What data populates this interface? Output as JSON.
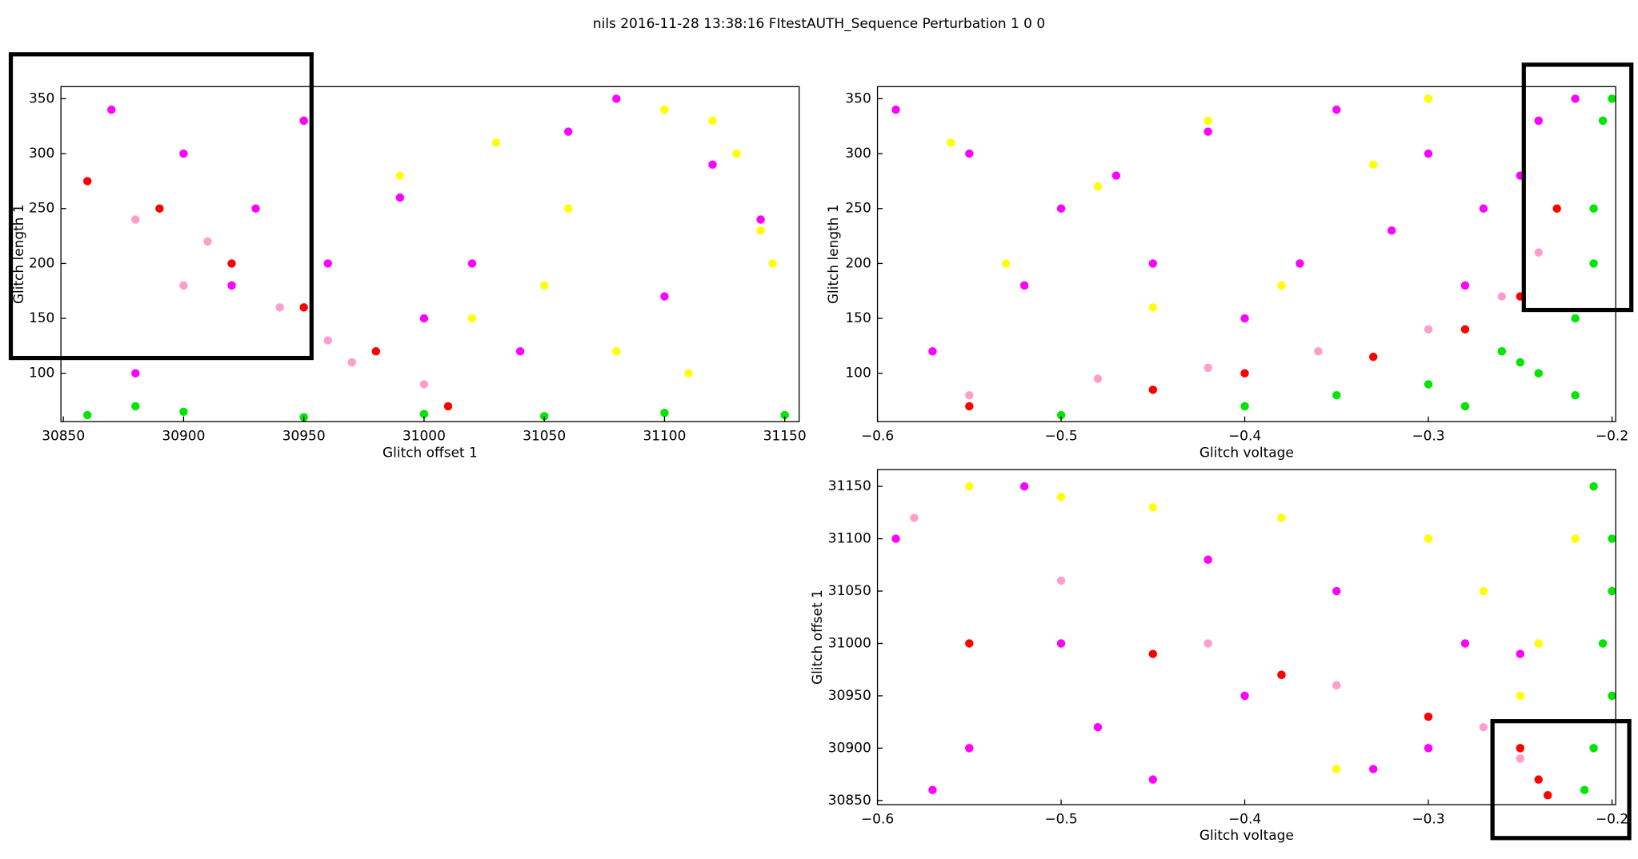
{
  "title": "nils 2016-11-28 13:38:16 FItestAUTH_Sequence Perturbation 1 0 0",
  "chart_data": [
    {
      "type": "scatter",
      "xlabel": "Glitch offset 1",
      "ylabel": "Glitch length 1",
      "xlim": [
        30849,
        31156
      ],
      "ylim": [
        56,
        361
      ],
      "xticks": [
        30850,
        30900,
        30950,
        31000,
        31050,
        31100,
        31150
      ],
      "yticks": [
        100,
        150,
        200,
        250,
        300,
        350
      ],
      "series": [
        {
          "color": "#00e600",
          "x": [
            30860,
            30900,
            30950,
            31000,
            31050,
            31100,
            31150,
            30880
          ],
          "values": [
            62,
            65,
            60,
            63,
            61,
            64,
            62,
            70
          ]
        },
        {
          "color": "#ffff00",
          "x": [
            31100,
            31130,
            31060,
            31145,
            31020,
            31080,
            31120,
            30990,
            31050,
            31140,
            31110,
            31030
          ],
          "values": [
            340,
            300,
            250,
            200,
            150,
            120,
            330,
            280,
            180,
            230,
            100,
            310
          ]
        },
        {
          "color": "#ff00ff",
          "x": [
            30870,
            30900,
            30930,
            30960,
            31000,
            31040,
            31080,
            31120,
            30880,
            30920,
            30950,
            30990,
            31020,
            31060,
            31100,
            31140
          ],
          "values": [
            340,
            300,
            250,
            200,
            150,
            120,
            350,
            290,
            100,
            180,
            330,
            260,
            200,
            320,
            170,
            240
          ]
        },
        {
          "color": "#ff9ecb",
          "x": [
            30880,
            30910,
            30940,
            30970,
            31000,
            30900,
            30960
          ],
          "values": [
            240,
            220,
            160,
            110,
            90,
            180,
            130
          ]
        },
        {
          "color": "#ff0000",
          "x": [
            30860,
            30890,
            30920,
            30950,
            30980,
            31010
          ],
          "values": [
            275,
            250,
            200,
            160,
            120,
            70
          ]
        }
      ]
    },
    {
      "type": "scatter",
      "xlabel": "Glitch voltage",
      "ylabel": "Glitch length 1",
      "xlim": [
        -0.6,
        -0.198
      ],
      "ylim": [
        56,
        361
      ],
      "xticks": [
        {
          "value": -0.6,
          "label": "−0.6"
        },
        {
          "value": -0.5,
          "label": "−0.5"
        },
        {
          "value": -0.4,
          "label": "−0.4"
        },
        {
          "value": -0.3,
          "label": "−0.3"
        },
        {
          "value": -0.2,
          "label": "−0.2"
        }
      ],
      "yticks": [
        100,
        150,
        200,
        250,
        300,
        350
      ],
      "series": [
        {
          "color": "#00e600",
          "x": [
            -0.5,
            -0.4,
            -0.35,
            -0.3,
            -0.28,
            -0.25,
            -0.22,
            -0.21,
            -0.205,
            -0.2,
            -0.22,
            -0.24,
            -0.26,
            -0.21
          ],
          "values": [
            62,
            70,
            80,
            90,
            70,
            110,
            150,
            250,
            330,
            350,
            80,
            100,
            120,
            200
          ]
        },
        {
          "color": "#ffff00",
          "x": [
            -0.56,
            -0.48,
            -0.42,
            -0.38,
            -0.33,
            -0.3,
            -0.45,
            -0.53
          ],
          "values": [
            310,
            270,
            330,
            180,
            290,
            350,
            160,
            200
          ]
        },
        {
          "color": "#ff00ff",
          "x": [
            -0.59,
            -0.55,
            -0.5,
            -0.45,
            -0.4,
            -0.35,
            -0.3,
            -0.27,
            -0.24,
            -0.22,
            -0.57,
            -0.52,
            -0.47,
            -0.42,
            -0.37,
            -0.32,
            -0.28,
            -0.25
          ],
          "values": [
            340,
            300,
            250,
            200,
            150,
            340,
            300,
            250,
            330,
            350,
            120,
            180,
            280,
            320,
            200,
            230,
            180,
            280
          ]
        },
        {
          "color": "#ff9ecb",
          "x": [
            -0.55,
            -0.48,
            -0.42,
            -0.36,
            -0.3,
            -0.26,
            -0.24
          ],
          "values": [
            80,
            95,
            105,
            120,
            140,
            170,
            210
          ]
        },
        {
          "color": "#ff0000",
          "x": [
            -0.55,
            -0.45,
            -0.4,
            -0.33,
            -0.28,
            -0.25,
            -0.23
          ],
          "values": [
            70,
            85,
            100,
            115,
            140,
            170,
            250
          ]
        }
      ]
    },
    {
      "type": "scatter",
      "xlabel": "Glitch voltage",
      "ylabel": "Glitch offset 1",
      "xlim": [
        -0.6,
        -0.198
      ],
      "ylim": [
        30846,
        31166
      ],
      "xticks": [
        {
          "value": -0.6,
          "label": "−0.6"
        },
        {
          "value": -0.5,
          "label": "−0.5"
        },
        {
          "value": -0.4,
          "label": "−0.4"
        },
        {
          "value": -0.3,
          "label": "−0.3"
        },
        {
          "value": -0.2,
          "label": "−0.2"
        }
      ],
      "yticks": [
        30850,
        30900,
        30950,
        31000,
        31050,
        31100,
        31150
      ],
      "series": [
        {
          "color": "#00e600",
          "x": [
            -0.21,
            -0.2,
            -0.205,
            -0.2,
            -0.21,
            -0.215,
            -0.2
          ],
          "values": [
            31150,
            31100,
            31000,
            30950,
            30900,
            30860,
            31050
          ]
        },
        {
          "color": "#ffff00",
          "x": [
            -0.55,
            -0.45,
            -0.38,
            -0.3,
            -0.27,
            -0.24,
            -0.5,
            -0.35,
            -0.25,
            -0.22
          ],
          "values": [
            31150,
            31130,
            31120,
            31100,
            31050,
            31000,
            31140,
            30880,
            30950,
            31100
          ]
        },
        {
          "color": "#ff00ff",
          "x": [
            -0.59,
            -0.55,
            -0.5,
            -0.45,
            -0.4,
            -0.35,
            -0.3,
            -0.25,
            -0.57,
            -0.48,
            -0.42,
            -0.33,
            -0.28,
            -0.52,
            -0.38
          ],
          "values": [
            31100,
            30900,
            31000,
            30870,
            30950,
            31050,
            30900,
            30990,
            30860,
            30920,
            31080,
            30880,
            31000,
            31150,
            30970
          ]
        },
        {
          "color": "#ff9ecb",
          "x": [
            -0.58,
            -0.5,
            -0.42,
            -0.35,
            -0.27,
            -0.25
          ],
          "values": [
            31120,
            31060,
            31000,
            30960,
            30920,
            30890
          ]
        },
        {
          "color": "#ff0000",
          "x": [
            -0.55,
            -0.45,
            -0.38,
            -0.3,
            -0.25,
            -0.24,
            -0.235
          ],
          "values": [
            31000,
            30990,
            30970,
            30930,
            30900,
            30870,
            30855
          ]
        }
      ]
    }
  ]
}
